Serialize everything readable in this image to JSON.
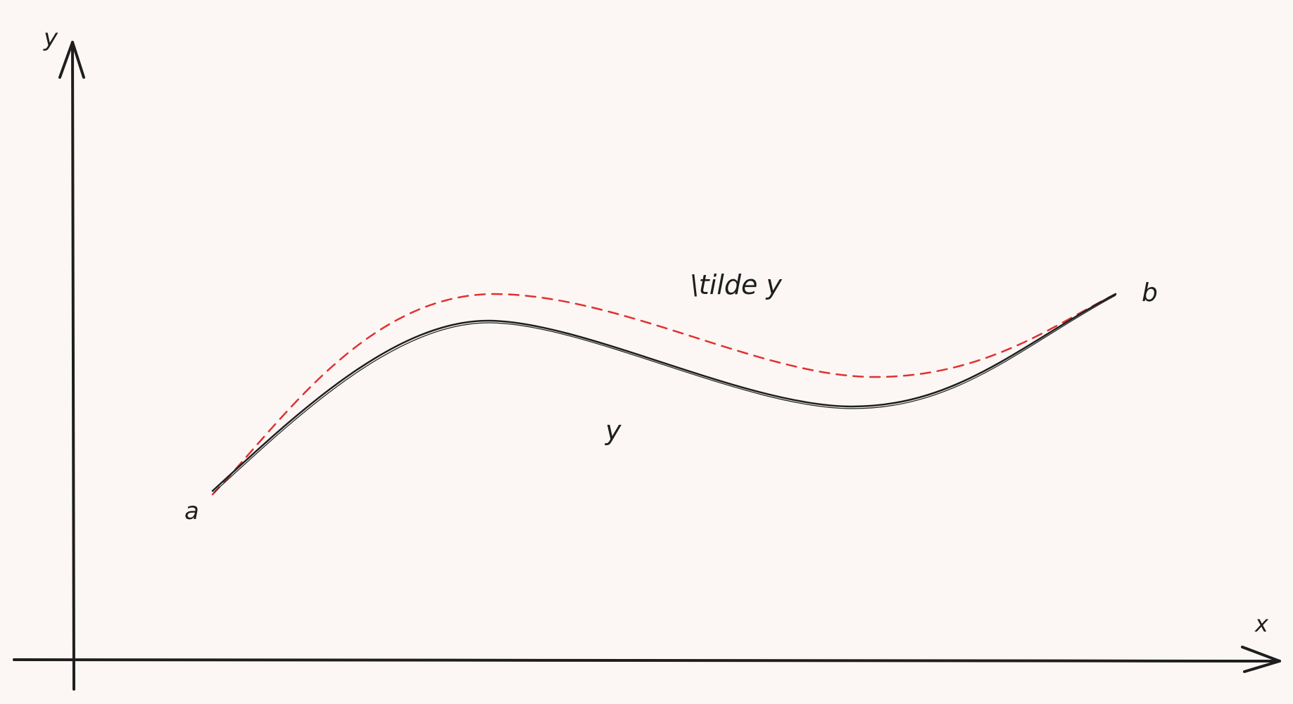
{
  "diagram": {
    "background_color": "#fcf7f5",
    "ink_color": "#1e1e1e",
    "accent_color": "#e03131",
    "axes": {
      "y_label": "y",
      "x_label": "x"
    },
    "curves": {
      "solid": {
        "label": "y",
        "style": "solid"
      },
      "dashed": {
        "label": "\\tilde y",
        "style": "dashed"
      }
    },
    "endpoints": {
      "start_label": "a",
      "end_label": "b"
    }
  }
}
